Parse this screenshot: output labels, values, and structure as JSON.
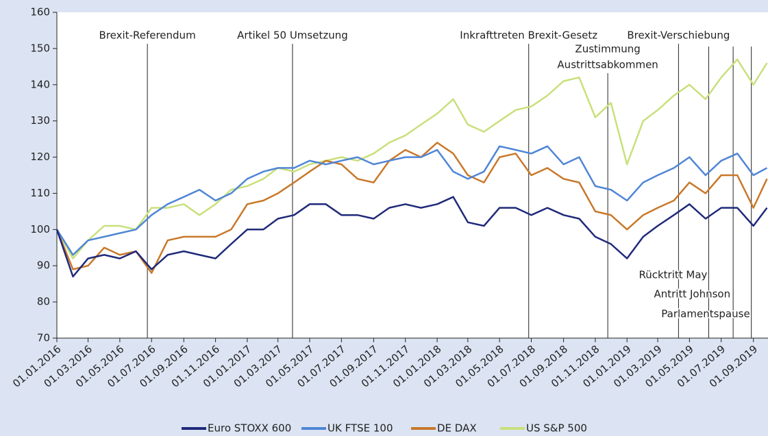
{
  "chart_data": {
    "type": "line",
    "x": [
      "01.01.2016",
      "01.02.2016",
      "01.03.2016",
      "01.04.2016",
      "01.05.2016",
      "01.06.2016",
      "01.07.2016",
      "01.08.2016",
      "01.09.2016",
      "01.10.2016",
      "01.11.2016",
      "01.12.2016",
      "01.01.2017",
      "01.02.2017",
      "01.03.2017",
      "01.04.2017",
      "01.05.2017",
      "01.06.2017",
      "01.07.2017",
      "01.08.2017",
      "01.09.2017",
      "01.10.2017",
      "01.11.2017",
      "01.12.2017",
      "01.01.2018",
      "01.02.2018",
      "01.03.2018",
      "01.04.2018",
      "01.05.2018",
      "01.06.2018",
      "01.07.2018",
      "01.08.2018",
      "01.09.2018",
      "01.10.2018",
      "01.11.2018",
      "01.12.2018",
      "01.01.2019",
      "01.02.2019",
      "01.03.2019",
      "01.04.2019",
      "01.05.2019",
      "01.06.2019",
      "01.07.2019",
      "01.08.2019",
      "01.09.2019",
      "27.09.2019"
    ],
    "series": [
      {
        "name": "Euro STOXX 600",
        "color": "#1f2a7a",
        "values": [
          100,
          87,
          92,
          93,
          92,
          94,
          89,
          93,
          94,
          93,
          92,
          96,
          100,
          100,
          103,
          104,
          107,
          107,
          104,
          104,
          103,
          106,
          107,
          106,
          107,
          109,
          102,
          101,
          106,
          106,
          104,
          106,
          104,
          103,
          98,
          96,
          92,
          98,
          101,
          104,
          107,
          103,
          106,
          106,
          101,
          106
        ]
      },
      {
        "name": "UK FTSE 100",
        "color": "#4f86d6",
        "values": [
          100,
          93,
          97,
          98,
          99,
          100,
          104,
          107,
          109,
          111,
          108,
          110,
          114,
          116,
          117,
          117,
          119,
          118,
          119,
          120,
          118,
          119,
          120,
          120,
          122,
          116,
          114,
          116,
          123,
          122,
          121,
          123,
          118,
          120,
          112,
          111,
          108,
          113,
          115,
          117,
          120,
          115,
          119,
          121,
          115,
          117
        ]
      },
      {
        "name": "DE DAX",
        "color": "#c8782a",
        "values": [
          100,
          89,
          90,
          95,
          93,
          94,
          88,
          97,
          98,
          98,
          98,
          100,
          107,
          108,
          110,
          113,
          116,
          119,
          118,
          114,
          113,
          119,
          122,
          120,
          124,
          121,
          115,
          113,
          120,
          121,
          115,
          117,
          114,
          113,
          105,
          104,
          100,
          104,
          106,
          108,
          113,
          110,
          115,
          115,
          106,
          114
        ]
      },
      {
        "name": "US S&P 500",
        "color": "#c8e07a",
        "values": [
          100,
          92,
          97,
          101,
          101,
          100,
          106,
          106,
          107,
          104,
          107,
          111,
          112,
          114,
          117,
          116,
          118,
          119,
          120,
          119,
          121,
          124,
          126,
          129,
          132,
          136,
          129,
          127,
          130,
          133,
          134,
          137,
          141,
          142,
          131,
          135,
          118,
          130,
          133,
          137,
          140,
          136,
          142,
          147,
          140,
          146
        ]
      }
    ],
    "xlim": [
      "01.01.2016",
      "29.09.2019"
    ],
    "xticks": [
      "01.01.2016",
      "01.03.2016",
      "01.05.2016",
      "01.07.2016",
      "01.09.2016",
      "01.11.2016",
      "01.01.2017",
      "01.03.2017",
      "01.05.2017",
      "01.07.2017",
      "01.09.2017",
      "01.11.2017",
      "01.01.2018",
      "01.03.2018",
      "01.05.2018",
      "01.07.2018",
      "01.09.2018",
      "01.11.2018",
      "01.01.2019",
      "01.03.2019",
      "01.05.2019",
      "01.07.2019",
      "01.09.2019"
    ],
    "ylim": [
      70,
      160
    ],
    "yticks": [
      70,
      80,
      90,
      100,
      110,
      120,
      130,
      140,
      150,
      160
    ],
    "annotations": [
      {
        "x": "23.06.2016",
        "lines": [
          "Brexit-Referendum"
        ]
      },
      {
        "x": "29.03.2017",
        "lines": [
          "Artikel 50 Umsetzung"
        ]
      },
      {
        "x": "26.06.2018",
        "lines": [
          "Inkrafttreten Brexit-Gesetz"
        ]
      },
      {
        "x": "25.11.2018",
        "lines": [
          "Zustimmung",
          "Austrittsabkommen"
        ]
      },
      {
        "x": "10.04.2019",
        "lines": [
          "Brexit-Verschiebung"
        ]
      },
      {
        "x": "07.06.2019",
        "lines": [
          "Rücktritt May"
        ]
      },
      {
        "x": "24.07.2019",
        "lines": [
          "Antritt Johnson"
        ]
      },
      {
        "x": "28.08.2019",
        "lines": [
          "Parlamentspause"
        ]
      }
    ],
    "legend": "bottom"
  }
}
